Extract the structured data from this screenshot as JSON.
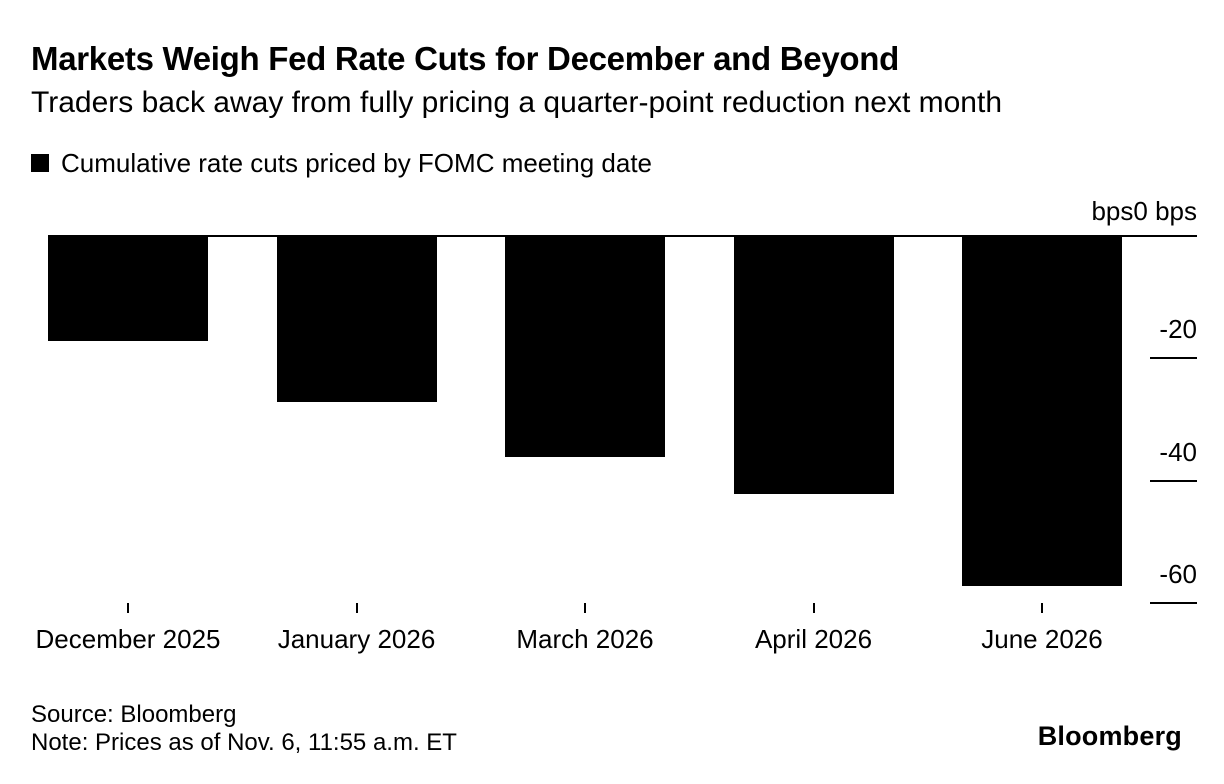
{
  "header": {
    "title": "Markets Weigh Fed Rate Cuts for December and Beyond",
    "subtitle": "Traders back away from fully pricing a quarter-point reduction next month"
  },
  "legend": {
    "label": "Cumulative rate cuts priced by FOMC meeting date",
    "swatch_color": "#000000"
  },
  "chart_data": {
    "type": "bar",
    "title": "Cumulative rate cuts priced by FOMC meeting date",
    "categories": [
      "December 2025",
      "January 2026",
      "March 2026",
      "April 2026",
      "June 2026"
    ],
    "values": [
      -17,
      -27,
      -36,
      -42,
      -57
    ],
    "unit_label": "bps",
    "zero_tick_label": "0 bps",
    "yticks": [
      -20,
      -40,
      -60
    ],
    "ylim": [
      -60,
      0
    ],
    "ylabel": "bps",
    "bar_color": "#000000",
    "axis_color": "#000000",
    "legend_position": "top-left",
    "grid": "short right-side dashes under each y tick label"
  },
  "footer": {
    "source": "Source: Bloomberg",
    "note": "Note: Prices as of Nov. 6, 11:55 a.m. ET",
    "brand": "Bloomberg"
  }
}
